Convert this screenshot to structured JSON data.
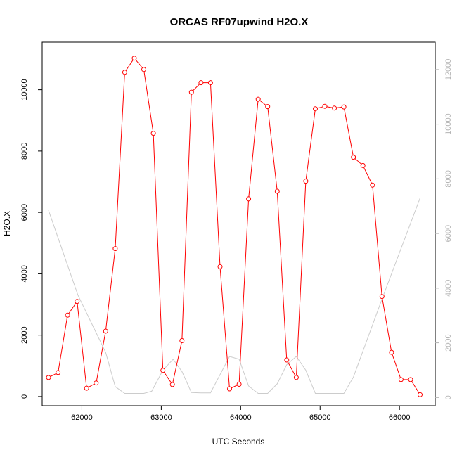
{
  "chart_data": {
    "type": "line",
    "title": "ORCAS RF07upwind H2O.X",
    "xlabel": "UTC Seconds",
    "ylabel": "H2O.X",
    "xlim": [
      61500,
      66450
    ],
    "ylim": [
      -300,
      11550
    ],
    "y2lim": [
      -300,
      13000
    ],
    "x_ticks": [
      "62000",
      "63000",
      "64000",
      "65000",
      "66000"
    ],
    "y_ticks": [
      "0",
      "2000",
      "4000",
      "6000",
      "8000",
      "10000"
    ],
    "y2_ticks": [
      "0",
      "2000",
      "4000",
      "6000",
      "8000",
      "10000",
      "12000"
    ],
    "grid": false,
    "series": [
      {
        "color": "#ff0000",
        "axis": "left",
        "marker": "open-circle",
        "x": [
          61580,
          61700,
          61820,
          61940,
          62060,
          62180,
          62300,
          62420,
          62540,
          62660,
          62780,
          62900,
          63020,
          63140,
          63260,
          63380,
          63500,
          63620,
          63740,
          63860,
          63980,
          64100,
          64220,
          64340,
          64460,
          64580,
          64700,
          64820,
          64940,
          65060,
          65180,
          65300,
          65420,
          65540,
          65660,
          65780,
          65900,
          66020,
          66140,
          66260
        ],
        "values": [
          620,
          780,
          2650,
          3100,
          270,
          440,
          2130,
          4820,
          10570,
          11030,
          10660,
          8580,
          850,
          390,
          1820,
          9920,
          10230,
          10230,
          4230,
          250,
          400,
          6440,
          9690,
          9450,
          6690,
          1190,
          620,
          7020,
          9380,
          9460,
          9400,
          9440,
          7800,
          7530,
          6890,
          3260,
          1440,
          550,
          550,
          60
        ]
      },
      {
        "color": "#cccccc",
        "axis": "right",
        "marker": "none",
        "x": [
          61580,
          61950,
          62300,
          62420,
          62540,
          62780,
          62880,
          63020,
          63150,
          63260,
          63380,
          63500,
          63620,
          63860,
          63980,
          64100,
          64220,
          64340,
          64460,
          64580,
          64700,
          64820,
          64940,
          65300,
          65420,
          65780,
          66260
        ],
        "values": [
          6850,
          3750,
          1650,
          400,
          150,
          150,
          230,
          1000,
          1400,
          950,
          180,
          170,
          170,
          1500,
          1400,
          420,
          150,
          150,
          500,
          1200,
          1500,
          1000,
          150,
          150,
          750,
          3600,
          7300
        ]
      }
    ]
  }
}
